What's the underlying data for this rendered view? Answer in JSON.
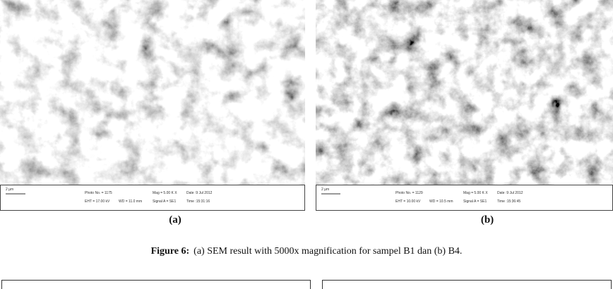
{
  "figure": {
    "panels": [
      {
        "label": "(a)",
        "scale_bar": "2 µm",
        "info": [
          "Photo No. = 1175",
          "EHT = 17.00 kV",
          "WD = 11.0 mm",
          "Mag = 5.00 K X",
          "Date :9 Jul 2012",
          "Signal A = SE1",
          "Time :15:31:16"
        ]
      },
      {
        "label": "(b)",
        "scale_bar": "2 µm",
        "info": [
          "Photo No. = 1129",
          "EHT = 10.00 kV",
          "WD = 10.5 mm",
          "Mag = 5.00 K X",
          "Date :9 Jul 2012",
          "Signal A = SE1",
          "Time :15:36:45"
        ]
      }
    ],
    "caption": {
      "number": "Figure 6:",
      "text": "(a) SEM result with 5000x magnification for sampel B1  dan (b) B4."
    }
  }
}
